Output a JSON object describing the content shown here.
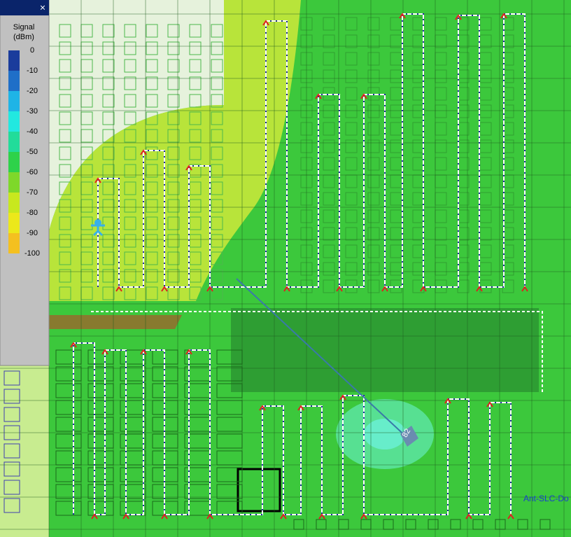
{
  "legend": {
    "title": "Signal",
    "unit": "(dBm)",
    "levels": [
      {
        "value": 0,
        "color": "#1a3c9c"
      },
      {
        "value": -10,
        "color": "#1f6fc8"
      },
      {
        "value": -20,
        "color": "#1fb4e6"
      },
      {
        "value": -30,
        "color": "#22e8e0"
      },
      {
        "value": -40,
        "color": "#22dc9a"
      },
      {
        "value": -50,
        "color": "#2ed24a"
      },
      {
        "value": -60,
        "color": "#7ed82a"
      },
      {
        "value": -70,
        "color": "#c8e81e"
      },
      {
        "value": -80,
        "color": "#ece81a"
      },
      {
        "value": -90,
        "color": "#f4c020"
      },
      {
        "value": -100,
        "color": "#f4a030"
      }
    ]
  },
  "annotations": {
    "access_point": "82",
    "antenna_label": "Ant-SLC-Do"
  }
}
